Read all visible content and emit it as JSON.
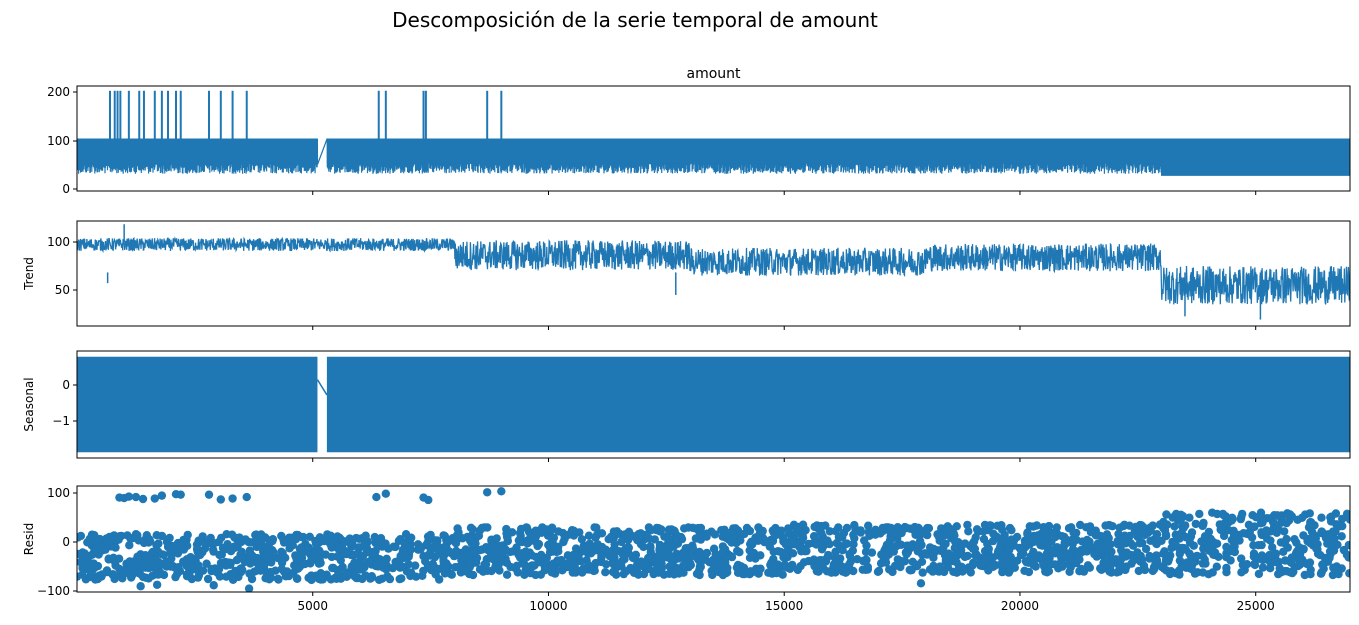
{
  "figure": {
    "suptitle": "Descomposición de la serie temporal de amount",
    "line_color": "#1f77b4"
  },
  "chart_data": [
    {
      "type": "line",
      "panel": "observed",
      "title": "amount",
      "ylabel": "",
      "xlim": [
        0,
        27000
      ],
      "ylim": [
        -10,
        210
      ],
      "yticks": [
        "0",
        "100",
        "200"
      ],
      "xticks": [
        5000,
        10000,
        15000,
        20000,
        25000
      ],
      "show_x_tick_labels": false,
      "description_of_values": "values mostly between 40 and 100, with spikes to 200 near x 700-3600, 6400-7400, 8600-9000; a gap near x 5100-5300; after x 23000 the lower band drops to about 20",
      "spikes_x": [
        700,
        800,
        860,
        920,
        1100,
        1320,
        1420,
        1650,
        1800,
        1930,
        2100,
        2200,
        2800,
        3050,
        3300,
        3600,
        6400,
        6550,
        7350,
        7400,
        8700,
        9000
      ],
      "gap_x": [
        5100,
        5300
      ]
    },
    {
      "type": "line",
      "panel": "trend",
      "title": "",
      "ylabel": "Trend",
      "xlim": [
        0,
        27000
      ],
      "ylim": [
        20,
        118
      ],
      "yticks": [
        "50",
        "100"
      ],
      "xticks": [
        5000,
        10000,
        15000,
        20000,
        25000
      ],
      "show_x_tick_labels": false,
      "segments": [
        {
          "x": [
            0,
            8000
          ],
          "mean": 96,
          "spread": 6
        },
        {
          "x": [
            8000,
            13000
          ],
          "mean": 86,
          "spread": 14
        },
        {
          "x": [
            13000,
            18000
          ],
          "mean": 80,
          "spread": 13
        },
        {
          "x": [
            18000,
            23000
          ],
          "mean": 84,
          "spread": 13
        },
        {
          "x": [
            23000,
            27000
          ],
          "mean": 58,
          "spread": 18
        }
      ],
      "annotations": [
        {
          "x": 650,
          "y": 60
        },
        {
          "x": 1000,
          "y": 115
        },
        {
          "x": 12700,
          "y": 49
        },
        {
          "x": 23500,
          "y": 29
        },
        {
          "x": 25100,
          "y": 26
        }
      ]
    },
    {
      "type": "area",
      "panel": "seasonal",
      "title": "",
      "ylabel": "Seasonal",
      "xlim": [
        0,
        27000
      ],
      "ylim": [
        -1.85,
        0.95
      ],
      "yticks": [
        "0",
        "−1"
      ],
      "xticks": [
        5000,
        10000,
        15000,
        20000,
        25000
      ],
      "show_x_tick_labels": false,
      "band": [
        -1.7,
        0.8
      ],
      "gap_x": [
        5100,
        5300
      ]
    },
    {
      "type": "scatter",
      "panel": "resid",
      "title": "",
      "ylabel": "Resid",
      "xlim": [
        0,
        27000
      ],
      "ylim": [
        -100,
        120
      ],
      "yticks": [
        "−100",
        "0",
        "100"
      ],
      "xticks": [
        "5000",
        "10000",
        "15000",
        "20000",
        "25000"
      ],
      "show_x_tick_labels": true,
      "segments": [
        {
          "x": [
            0,
            8000
          ],
          "low": -75,
          "high": 20
        },
        {
          "x": [
            8000,
            15000
          ],
          "low": -65,
          "high": 35
        },
        {
          "x": [
            15000,
            23000
          ],
          "low": -60,
          "high": 40
        },
        {
          "x": [
            23000,
            27000
          ],
          "low": -65,
          "high": 65
        }
      ],
      "outliers": [
        [
          900,
          96
        ],
        [
          1000,
          95
        ],
        [
          1100,
          98
        ],
        [
          1250,
          97
        ],
        [
          1400,
          93
        ],
        [
          1650,
          94
        ],
        [
          1800,
          100
        ],
        [
          2100,
          103
        ],
        [
          2200,
          102
        ],
        [
          2800,
          102
        ],
        [
          3050,
          92
        ],
        [
          3300,
          94
        ],
        [
          3600,
          97
        ],
        [
          6350,
          97
        ],
        [
          6550,
          104
        ],
        [
          7350,
          96
        ],
        [
          7450,
          91
        ],
        [
          8700,
          107
        ],
        [
          9000,
          109
        ],
        [
          1350,
          -88
        ],
        [
          1700,
          -85
        ],
        [
          2900,
          -86
        ],
        [
          3650,
          -93
        ],
        [
          17900,
          -82
        ]
      ]
    }
  ]
}
